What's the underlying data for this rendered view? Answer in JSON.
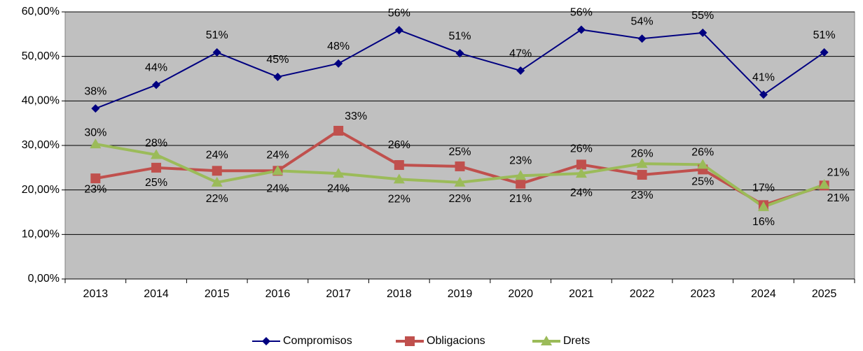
{
  "chart_data": {
    "type": "line",
    "categories": [
      "2013",
      "2014",
      "2015",
      "2016",
      "2017",
      "2018",
      "2019",
      "2020",
      "2021",
      "2022",
      "2023",
      "2024",
      "2025"
    ],
    "series": [
      {
        "name": "Compromisos",
        "color": "#000080",
        "marker": "diamond",
        "values": [
          38.3,
          43.6,
          50.9,
          45.4,
          48.4,
          55.9,
          50.7,
          46.8,
          56.0,
          54.0,
          55.3,
          41.4,
          50.9
        ],
        "value_labels": [
          "38%",
          "44%",
          "51%",
          "45%",
          "48%",
          "56%",
          "51%",
          "47%",
          "56%",
          "54%",
          "55%",
          "41%",
          "51%"
        ]
      },
      {
        "name": "Obligacions",
        "color": "#c0504d",
        "marker": "square",
        "values": [
          22.6,
          25.0,
          24.3,
          24.3,
          33.3,
          25.6,
          25.3,
          21.4,
          25.7,
          23.4,
          24.6,
          16.6,
          21.0
        ],
        "value_labels": [
          "23%",
          "25%",
          "24%",
          "24%",
          "33%",
          "26%",
          "25%",
          "21%",
          "26%",
          "23%",
          "25%",
          "17%",
          "21%"
        ]
      },
      {
        "name": "Drets",
        "color": "#9bbb59",
        "marker": "triangle",
        "values": [
          30.3,
          27.9,
          21.7,
          24.3,
          23.7,
          22.4,
          21.7,
          23.2,
          23.7,
          25.9,
          25.7,
          16.2,
          21.2
        ],
        "value_labels": [
          "30%",
          "28%",
          "22%",
          "24%",
          "24%",
          "22%",
          "22%",
          "23%",
          "24%",
          "26%",
          "26%",
          "16%",
          "21%"
        ]
      }
    ],
    "ylim": [
      0,
      60
    ],
    "yticks": [
      {
        "value": 0,
        "label": "0,00%"
      },
      {
        "value": 10,
        "label": "10,00%"
      },
      {
        "value": 20,
        "label": "20,00%"
      },
      {
        "value": 30,
        "label": "30,00%"
      },
      {
        "value": 40,
        "label": "40,00%"
      },
      {
        "value": 50,
        "label": "50,00%"
      },
      {
        "value": 60,
        "label": "60,00%"
      }
    ],
    "grid": true,
    "legend": "bottom"
  }
}
